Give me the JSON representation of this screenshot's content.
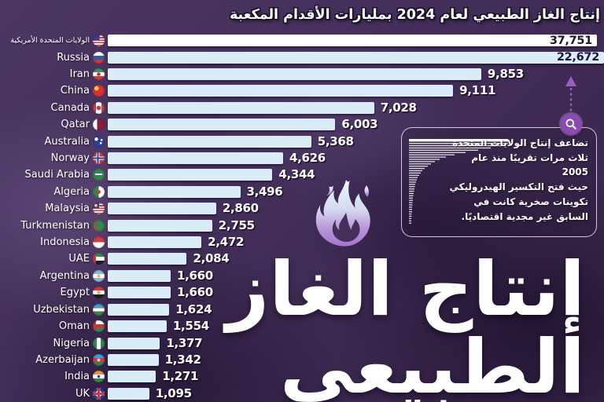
{
  "header": {
    "title": "إنتاج الغاز الطبيعي لعام 2024 بمليارات الأقدام المكعبة"
  },
  "chart_data": {
    "type": "bar",
    "orientation": "horizontal",
    "title": "إنتاج الغاز الطبيعي لعام 2024 بمليارات الأقدام المكعبة",
    "unit": "بمليارات الأقدام المكعبة",
    "year": "2024",
    "legend_position": "none",
    "grid": false,
    "xlim_visible": [
      0,
      13000
    ],
    "note": "Top two bars exceed the visible axis range and are clipped at the right edge with values printed inside the bars",
    "categories": [
      "الولايات المتحدة الأمريكية",
      "Russia",
      "Iran",
      "China",
      "Canada",
      "Qatar",
      "Australia",
      "Norway",
      "Saudi Arabia",
      "Algeria",
      "Malaysia",
      "Turkmenistan",
      "Indonesia",
      "UAE",
      "Argentina",
      "Egypt",
      "Uzbekistan",
      "Oman",
      "Nigeria",
      "Azerbaijan",
      "India",
      "UK"
    ],
    "values": [
      37751,
      22672,
      9853,
      9111,
      7028,
      6003,
      5368,
      4626,
      4344,
      3496,
      2860,
      2755,
      2472,
      2084,
      1660,
      1660,
      1624,
      1554,
      1377,
      1342,
      1271,
      1095
    ],
    "value_labels": [
      "37,751",
      "22,672",
      "9,853",
      "9,111",
      "7,028",
      "6,003",
      "5,368",
      "4,626",
      "4,344",
      "3,496",
      "2,860",
      "2,755",
      "2,472",
      "2,084",
      "1,660",
      "1,660",
      "1,624",
      "1,554",
      "1,377",
      "1,342",
      "1,271",
      "1,095"
    ],
    "flags": [
      "us",
      "ru",
      "ir",
      "cn",
      "ca",
      "qa",
      "au",
      "no",
      "sa",
      "dz",
      "my",
      "tm",
      "id",
      "ae",
      "ar",
      "eg",
      "uz",
      "om",
      "ng",
      "az",
      "in",
      "gb"
    ]
  },
  "annotation": {
    "lines": [
      "تضاعف إنتاج الولايات المتحدة",
      "ثلاث مرات تقريبًا منذ عام 2005",
      "حيث فتح التكسير الهيدروليكي",
      "تكوينات صخرية كانت في",
      "السابق غير مجدية اقتصاديًا."
    ],
    "icons": [
      "magnifier-icon",
      "arrow-up-icon",
      "mini-bar-chart-thumbnail"
    ]
  },
  "poster": {
    "line1": "إنتاج الغاز",
    "line2": "الطبيعي",
    "icon": "flame-icon"
  },
  "colors": {
    "background": "#44305a",
    "bar_fill": "#d9ecf8",
    "top_bar_fill": "#ffffff",
    "accent_purple": "#8a4bb0",
    "text": "#ffffff",
    "value_inside_bar_text": "#221538"
  }
}
